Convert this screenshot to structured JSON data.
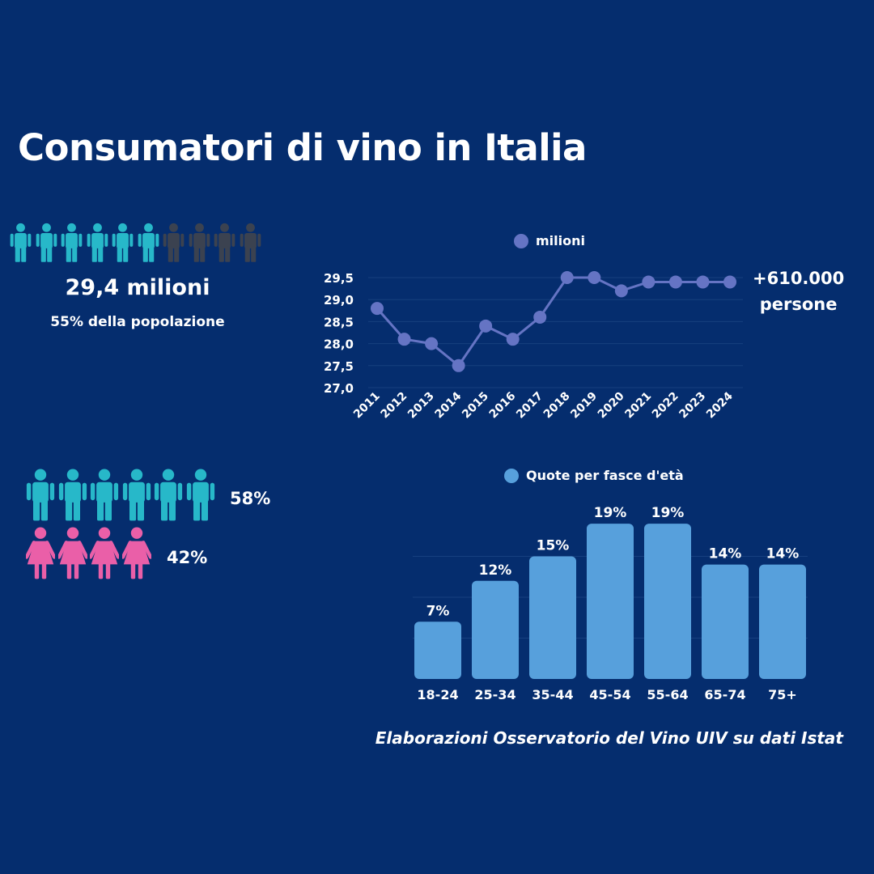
{
  "title": "Consumatori di vino in Italia",
  "colors": {
    "background": "#052d6e",
    "male": "#27b8c9",
    "female": "#ea5fa8",
    "inactive": "#3b4250",
    "line": "#6574c4",
    "bar": "#57a0dc",
    "grid": "#17407f"
  },
  "population": {
    "icons_total": 10,
    "icons_highlighted": 6,
    "headline": "29,4 milioni",
    "subline": "55% della popolazione"
  },
  "gender": {
    "male": {
      "icons": 6,
      "label": "58%"
    },
    "female": {
      "icons": 4,
      "label": "42%"
    }
  },
  "note": {
    "line1": "+610.000",
    "line2": "persone"
  },
  "source": "Elaborazioni Osservatorio del Vino UIV su dati Istat",
  "chart_data": [
    {
      "type": "line",
      "title": "",
      "xlabel": "",
      "ylabel": "",
      "legend_position": "top",
      "grid": true,
      "ylim": [
        27.0,
        29.5
      ],
      "yticks": [
        "29,5",
        "29,0",
        "28,5",
        "28,0",
        "27,5",
        "27,0"
      ],
      "x": [
        "2011",
        "2012",
        "2013",
        "2014",
        "2015",
        "2016",
        "2017",
        "2018",
        "2019",
        "2020",
        "2021",
        "2022",
        "2023",
        "2024"
      ],
      "series": [
        {
          "name": "milioni",
          "values": [
            28.8,
            28.1,
            28.0,
            27.5,
            28.4,
            28.1,
            28.6,
            29.5,
            29.5,
            29.2,
            29.4,
            29.4,
            29.4,
            29.4
          ]
        }
      ]
    },
    {
      "type": "bar",
      "title": "",
      "xlabel": "",
      "ylabel": "",
      "legend_position": "top",
      "grid": true,
      "ylim": [
        0,
        20
      ],
      "categories": [
        "18-24",
        "25-34",
        "35-44",
        "45-54",
        "55-64",
        "65-74",
        "75+"
      ],
      "series": [
        {
          "name": "Quote per fasce d'età",
          "values": [
            7,
            12,
            15,
            19,
            19,
            14,
            14
          ]
        }
      ],
      "data_labels": [
        "7%",
        "12%",
        "15%",
        "19%",
        "19%",
        "14%",
        "14%"
      ]
    }
  ]
}
